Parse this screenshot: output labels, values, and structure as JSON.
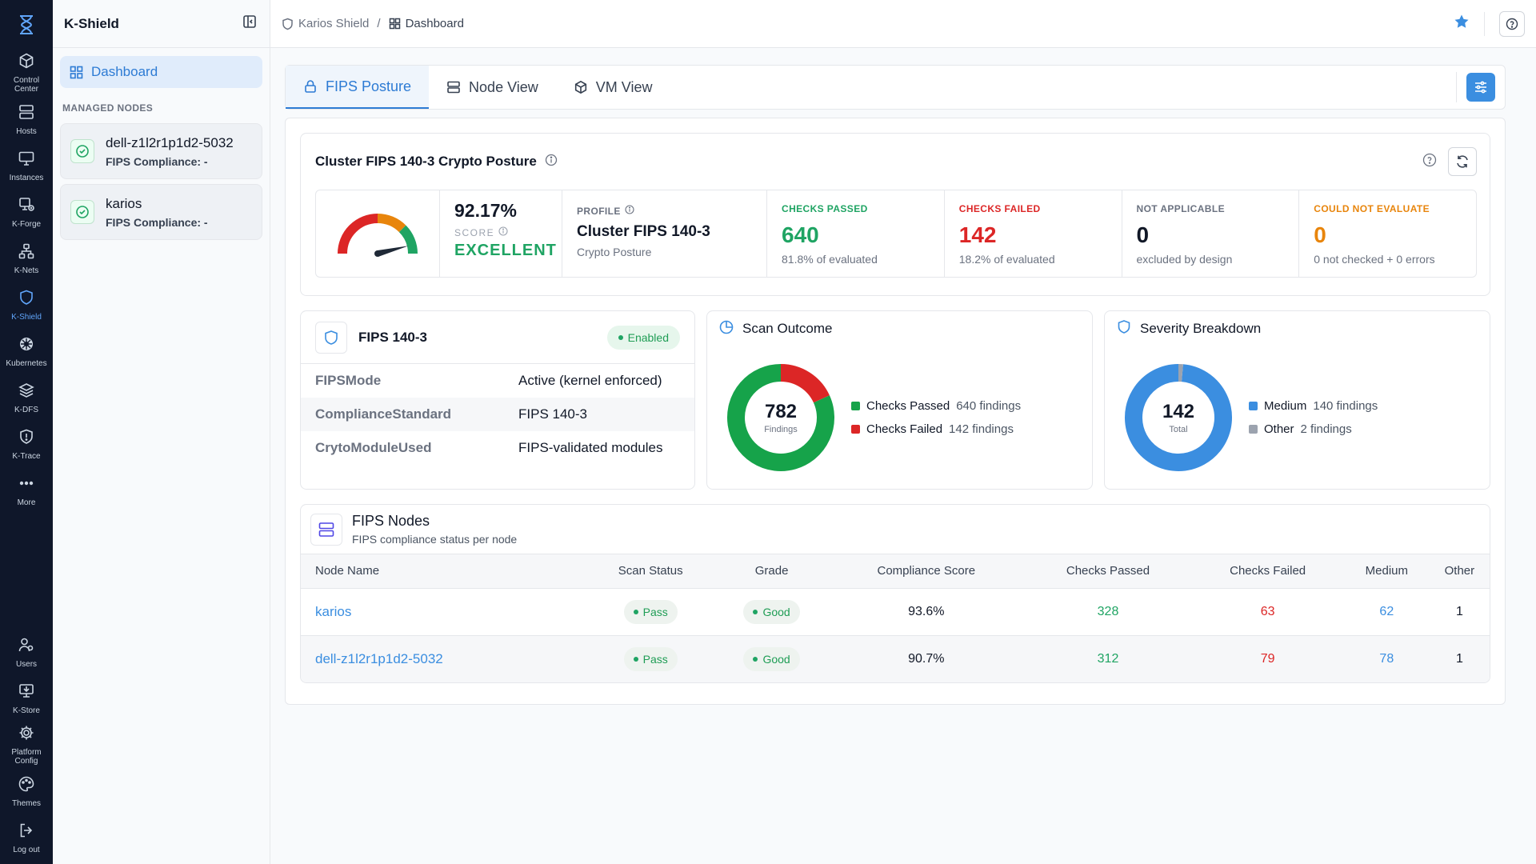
{
  "rail": {
    "items": [
      {
        "label_lines": [
          "Control",
          "Center"
        ],
        "icon": "cube-icon"
      },
      {
        "label_lines": [
          "Hosts"
        ],
        "icon": "server-icon"
      },
      {
        "label_lines": [
          "Instances"
        ],
        "icon": "monitor-icon"
      },
      {
        "label_lines": [
          "K-Forge"
        ],
        "icon": "forge-icon"
      },
      {
        "label_lines": [
          "K-Nets"
        ],
        "icon": "network-icon"
      },
      {
        "label_lines": [
          "K-Shield"
        ],
        "icon": "shield-icon",
        "active": true
      },
      {
        "label_lines": [
          "Kubernetes"
        ],
        "icon": "helm-icon"
      },
      {
        "label_lines": [
          "K-DFS"
        ],
        "icon": "layers-icon"
      },
      {
        "label_lines": [
          "K-Trace"
        ],
        "icon": "trace-icon"
      },
      {
        "label_lines": [
          "More"
        ],
        "icon": "ellipsis-icon"
      }
    ],
    "bottom": [
      {
        "label_lines": [
          "Users"
        ],
        "icon": "users-icon"
      },
      {
        "label_lines": [
          "K-Store"
        ],
        "icon": "store-icon"
      },
      {
        "label_lines": [
          "Platform",
          "Config"
        ],
        "icon": "gear-icon"
      },
      {
        "label_lines": [
          "Themes"
        ],
        "icon": "palette-icon"
      },
      {
        "label_lines": [
          "Log out"
        ],
        "icon": "logout-icon"
      }
    ]
  },
  "sidebar": {
    "title": "K-Shield",
    "dashboard_label": "Dashboard",
    "section_label": "MANAGED NODES",
    "nodes": [
      {
        "name": "dell-z1l2r1p1d2-5032",
        "status": "FIPS Compliance: -"
      },
      {
        "name": "karios",
        "status": "FIPS Compliance: -"
      }
    ]
  },
  "header": {
    "breadcrumb": [
      "Karios Shield",
      "Dashboard"
    ],
    "separator": "/"
  },
  "tabs": [
    {
      "label": "FIPS Posture",
      "active": true
    },
    {
      "label": "Node View"
    },
    {
      "label": "VM View"
    }
  ],
  "posture": {
    "title": "Cluster FIPS 140-3 Crypto Posture",
    "score": "92.17%",
    "score_label": "SCORE",
    "grade": "EXCELLENT",
    "gauge_fraction": 0.9217,
    "profile_label": "PROFILE",
    "profile_name": "Cluster FIPS 140-3",
    "profile_sub": "Crypto Posture",
    "metrics": [
      {
        "label": "CHECKS PASSED",
        "value": "640",
        "sub": "81.8% of evaluated",
        "color": "#1fa463"
      },
      {
        "label": "CHECKS FAILED",
        "value": "142",
        "sub": "18.2% of evaluated",
        "color": "#dc2626"
      },
      {
        "label": "NOT APPLICABLE",
        "value": "0",
        "sub": "excluded by design",
        "color": "#111827"
      },
      {
        "label": "COULD NOT EVALUATE",
        "value": "0",
        "sub": "0 not checked + 0 errors",
        "color": "#e8850c"
      }
    ]
  },
  "fips": {
    "title": "FIPS 140-3",
    "badge": "Enabled",
    "rows": [
      {
        "key": "FIPSMode",
        "value": "Active (kernel enforced)"
      },
      {
        "key": "ComplianceStandard",
        "value": "FIPS 140-3"
      },
      {
        "key": "CrytoModuleUsed",
        "value": "FIPS-validated modules"
      }
    ]
  },
  "chart_data": [
    {
      "type": "pie",
      "title": "Scan Outcome",
      "center_value": "782",
      "center_label": "Findings",
      "series": [
        {
          "name": "Checks Passed",
          "value": 640,
          "suffix": "640 findings",
          "color": "#16a34a"
        },
        {
          "name": "Checks Failed",
          "value": 142,
          "suffix": "142 findings",
          "color": "#dc2626"
        }
      ]
    },
    {
      "type": "pie",
      "title": "Severity Breakdown",
      "center_value": "142",
      "center_label": "Total",
      "series": [
        {
          "name": "Medium",
          "value": 140,
          "suffix": "140 findings",
          "color": "#3b8ee0"
        },
        {
          "name": "Other",
          "value": 2,
          "suffix": "2 findings",
          "color": "#9ca3af"
        }
      ]
    }
  ],
  "nodes_table": {
    "title": "FIPS Nodes",
    "subtitle": "FIPS compliance status per node",
    "columns": [
      "Node Name",
      "Scan Status",
      "Grade",
      "Compliance Score",
      "Checks Passed",
      "Checks Failed",
      "Medium",
      "Other"
    ],
    "rows": [
      {
        "name": "karios",
        "status": "Pass",
        "grade": "Good",
        "score": "93.6%",
        "passed": "328",
        "failed": "63",
        "medium": "62",
        "other": "1"
      },
      {
        "name": "dell-z1l2r1p1d2-5032",
        "status": "Pass",
        "grade": "Good",
        "score": "90.7%",
        "passed": "312",
        "failed": "79",
        "medium": "78",
        "other": "1"
      }
    ]
  },
  "colors": {
    "accent": "#2d7bd4",
    "pass": "#1fa463",
    "fail": "#dc2626",
    "warn": "#e8850c"
  }
}
